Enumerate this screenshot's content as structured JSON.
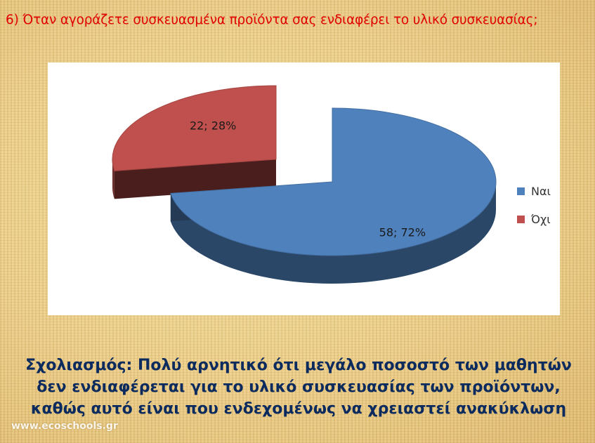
{
  "title": "6) Όταν αγοράζετε συσκευασμένα προϊόντα σας ενδιαφέρει το υλικό συσκευασίας;",
  "chart_data": {
    "type": "pie",
    "title": "6) Όταν αγοράζετε συσκευασμένα προϊόντα σας ενδιαφέρει το υλικό συσκευασίας;",
    "categories": [
      "Ναι",
      "Όχι"
    ],
    "values": [
      58,
      22
    ],
    "percentages": [
      72,
      28
    ],
    "data_labels": [
      "58; 72%",
      "22; 28%"
    ],
    "colors": [
      "#4f81bd",
      "#c0504d"
    ],
    "legend_position": "right",
    "style": "3d-exploded"
  },
  "legend": [
    {
      "label": "Ναι",
      "color": "#4f81bd"
    },
    {
      "label": "Όχι",
      "color": "#c0504d"
    }
  ],
  "comment": "Σχολιασμός: Πολύ αρνητικό ότι μεγάλο ποσοστό των μαθητών δεν ενδιαφέρεται για το υλικό συσκευασίας των προϊόντων, καθώς αυτό είναι που ενδεχομένως να χρειαστεί ανακύκλωση",
  "watermark": "www.ecoschools.gr"
}
